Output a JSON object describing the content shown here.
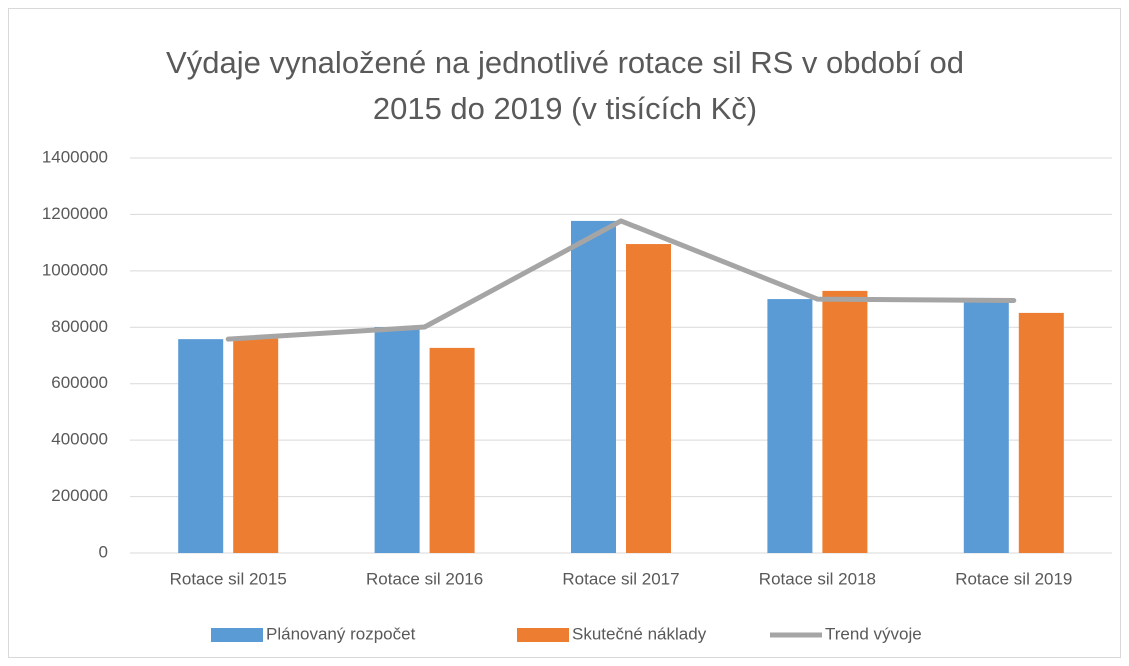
{
  "chart_data": {
    "type": "bar",
    "title": "Výdaje vynaložené na jednotlivé rotace sil RS v období od 2015 do 2019 (v tisících Kč)",
    "categories": [
      "Rotace sil 2015",
      "Rotace sil 2016",
      "Rotace sil 2017",
      "Rotace sil 2018",
      "Rotace sil 2019"
    ],
    "series": [
      {
        "name": "Plánovaný rozpočet",
        "type": "bar",
        "color": "#5b9bd5",
        "values": [
          758000,
          801000,
          1177000,
          900000,
          897000
        ]
      },
      {
        "name": "Skutečné náklady",
        "type": "bar",
        "color": "#ed7d31",
        "values": [
          760000,
          727000,
          1095000,
          929000,
          851000
        ]
      },
      {
        "name": "Trend vývoje",
        "type": "line",
        "color": "#a5a5a5",
        "values": [
          758000,
          801000,
          1177000,
          900000,
          895000
        ]
      }
    ],
    "ylim": [
      0,
      1400000
    ],
    "yticks": [
      0,
      200000,
      400000,
      600000,
      800000,
      1000000,
      1200000,
      1400000
    ],
    "grid": true,
    "legend": "bottom"
  }
}
